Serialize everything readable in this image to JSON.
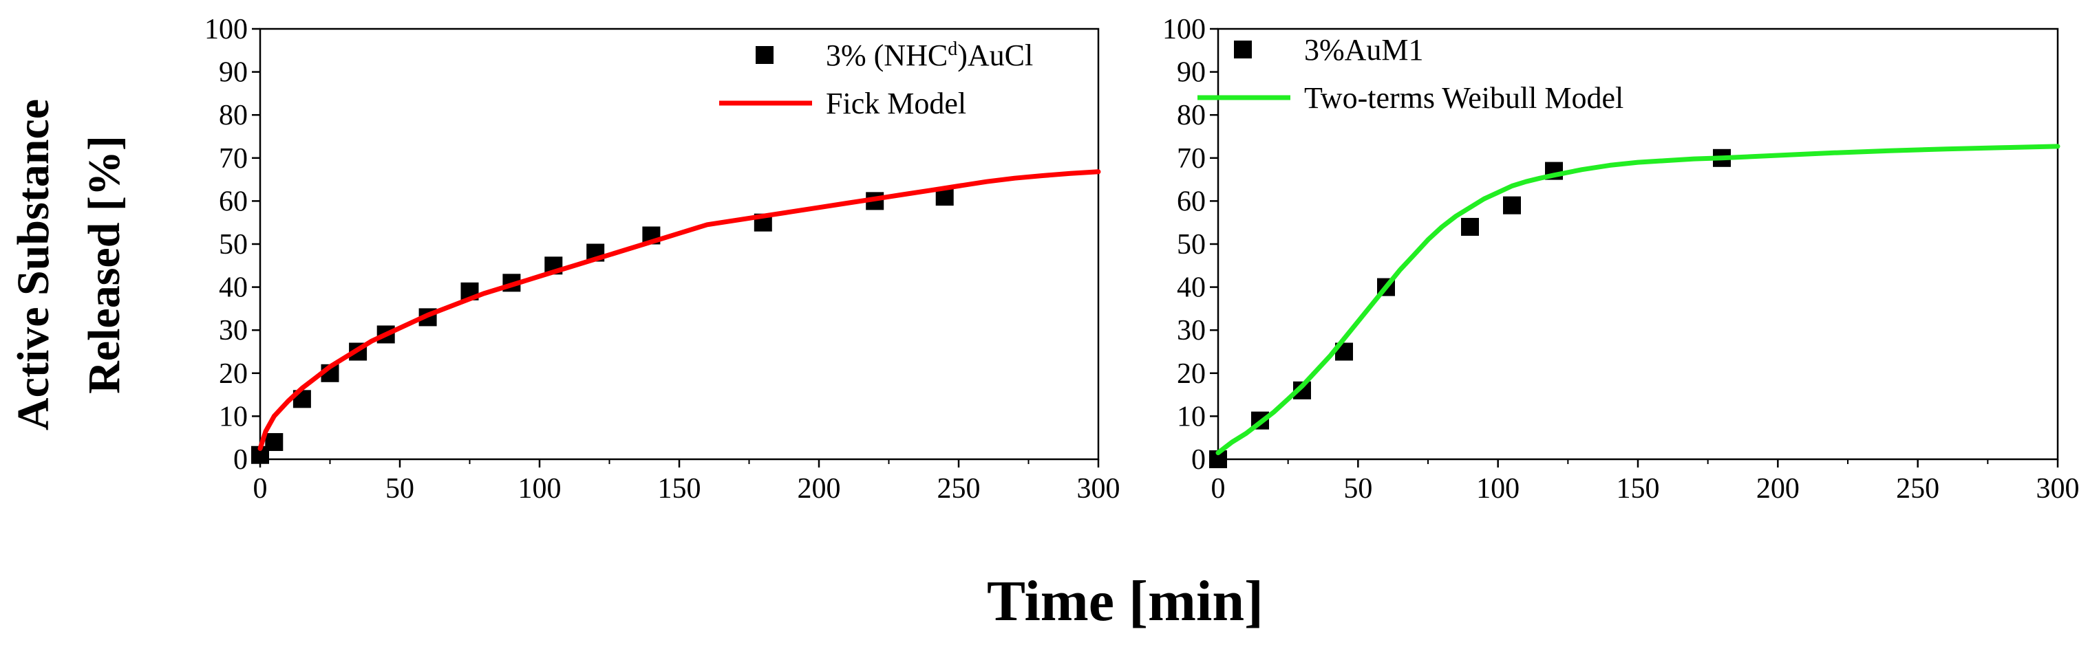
{
  "figure": {
    "ylabel_line1": "Active Substance",
    "ylabel_line2": "Released [%]",
    "xlabel": "Time [min]"
  },
  "chart_data": [
    {
      "type": "scatter",
      "xlim": [
        0,
        300
      ],
      "ylim": [
        0,
        100
      ],
      "x_ticks": [
        0,
        50,
        100,
        150,
        200,
        250,
        300
      ],
      "y_ticks": [
        0,
        10,
        20,
        30,
        40,
        50,
        60,
        70,
        80,
        90,
        100
      ],
      "grid": false,
      "legend_position": "top-right",
      "series": [
        {
          "name": "3% (NHC",
          "name_sup": "d",
          "name_suffix": ")AuCl",
          "kind": "markers",
          "marker": "square",
          "color": "#000000",
          "x": [
            0,
            5,
            15,
            25,
            35,
            45,
            60,
            75,
            90,
            105,
            120,
            140,
            180,
            220,
            245
          ],
          "y": [
            1,
            4,
            14,
            20,
            25,
            29,
            33,
            39,
            41,
            45,
            48,
            52,
            55,
            60,
            61
          ]
        },
        {
          "name": "Fick Model",
          "kind": "line",
          "color": "#ff0000",
          "x": [
            0,
            2,
            5,
            10,
            15,
            20,
            25,
            30,
            40,
            50,
            60,
            70,
            80,
            90,
            100,
            110,
            120,
            130,
            140,
            150,
            160,
            170,
            180,
            190,
            200,
            210,
            220,
            230,
            240,
            250,
            260,
            270,
            280,
            290,
            300
          ],
          "y": [
            2.5,
            6.5,
            10,
            13.5,
            16.5,
            19,
            21.5,
            23.5,
            27.5,
            30.5,
            33.5,
            36,
            38.5,
            40.5,
            42.5,
            44.5,
            46.5,
            48.5,
            50.5,
            52.5,
            54.5,
            55.5,
            56.5,
            57.5,
            58.5,
            59.5,
            60.5,
            61.5,
            62.5,
            63.5,
            64.5,
            65.3,
            65.9,
            66.4,
            66.8
          ]
        }
      ]
    },
    {
      "type": "scatter",
      "xlim": [
        0,
        300
      ],
      "ylim": [
        0,
        100
      ],
      "x_ticks": [
        0,
        50,
        100,
        150,
        200,
        250,
        300
      ],
      "y_ticks": [
        0,
        10,
        20,
        30,
        40,
        50,
        60,
        70,
        80,
        90,
        100
      ],
      "grid": false,
      "legend_position": "top-left",
      "series": [
        {
          "name": "3%AuM1",
          "kind": "markers",
          "marker": "square",
          "color": "#000000",
          "x": [
            0,
            15,
            30,
            45,
            60,
            90,
            105,
            120,
            180
          ],
          "y": [
            0,
            9,
            16,
            25,
            40,
            54,
            59,
            67,
            70
          ]
        },
        {
          "name": "Two-terms Weibull Model",
          "kind": "line",
          "color": "#22ee22",
          "x": [
            0,
            5,
            10,
            15,
            20,
            25,
            30,
            35,
            40,
            45,
            50,
            55,
            60,
            65,
            70,
            75,
            80,
            85,
            90,
            95,
            100,
            105,
            110,
            115,
            120,
            130,
            140,
            150,
            160,
            170,
            180,
            200,
            220,
            240,
            260,
            280,
            300
          ],
          "y": [
            1.5,
            4,
            6,
            8.5,
            11,
            14,
            17,
            20.5,
            24,
            28,
            32,
            36,
            40,
            44,
            47.5,
            51,
            54,
            56.5,
            58.5,
            60.5,
            62,
            63.5,
            64.5,
            65.3,
            66,
            67.3,
            68.3,
            69,
            69.4,
            69.8,
            70,
            70.6,
            71.2,
            71.7,
            72.1,
            72.4,
            72.7
          ]
        }
      ]
    }
  ]
}
